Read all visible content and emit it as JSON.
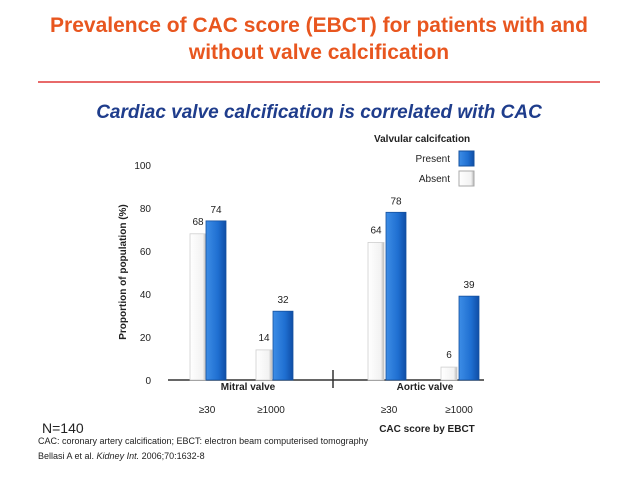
{
  "slide": {
    "title_line1": "Prevalence of CAC score (EBCT) for patients with and",
    "title_line2": "without valve calcification",
    "subtitle": "Cardiac valve calcification is correlated with CAC",
    "n_label": "N=140",
    "footnote": "CAC: coronary artery calcification; EBCT: electron beam computerised tomography",
    "reference": "Bellasi A et al. Kidney Int. 2006;70:1632-8",
    "colors": {
      "title": "#e8561f",
      "subtitle": "#1f3d8c",
      "present": "#1f6fd1",
      "absent": "#ffffff"
    }
  },
  "chart_data": {
    "type": "bar",
    "ylabel": "Proportion of population (%)",
    "xlabel": "CAC score by EBCT",
    "ylim": [
      0,
      100
    ],
    "yticks": [
      "0",
      "20",
      "40",
      "60",
      "80",
      "100"
    ],
    "legend_title": "Valvular calcifcation",
    "legend_position": "top-right",
    "groups": [
      "Mitral valve",
      "Aortic valve"
    ],
    "categories": [
      "≥30",
      "≥1000",
      "≥30",
      "≥1000"
    ],
    "series": [
      {
        "name": "Absent",
        "values": [
          68,
          14,
          64,
          6
        ]
      },
      {
        "name": "Present",
        "values": [
          74,
          32,
          78,
          39
        ]
      }
    ],
    "value_labels": {
      "absent": [
        "68",
        "14",
        "64",
        "6"
      ],
      "present": [
        "74",
        "32",
        "78",
        "39"
      ]
    }
  }
}
